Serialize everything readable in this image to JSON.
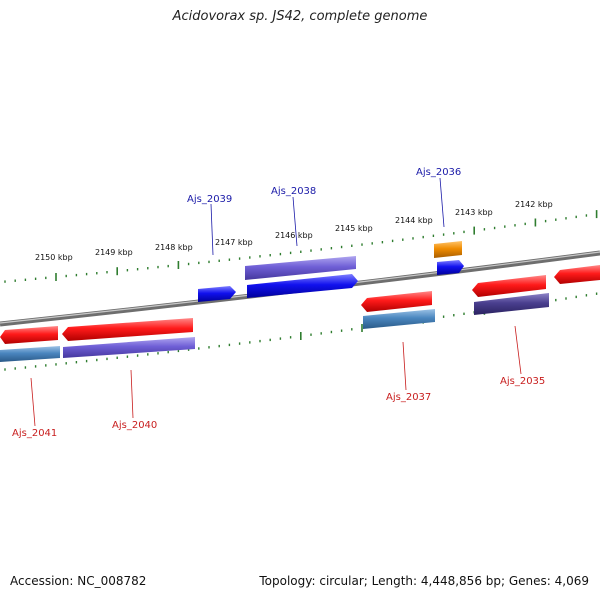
{
  "title": "Acidovorax sp. JS42, complete genome",
  "footer": {
    "accession": "Accession: NC_008782",
    "topology": "Topology: circular; Length: 4,448,856 bp; Genes: 4,069"
  },
  "colors": {
    "backbone": "#7d7d7d",
    "tick": "#2f7d2f",
    "label_forward": "#1a1aa8",
    "label_reverse": "#c81e1e",
    "gene_red": "#ff1a1a",
    "gene_blue": "#1111ee",
    "gene_purple": "#6f5fd6",
    "gene_steel": "#4a86bf",
    "gene_darkpurple": "#4a3f8f",
    "gene_orange": "#f08c00"
  },
  "kbp_ticks": [
    "2150 kbp",
    "2149 kbp",
    "2148 kbp",
    "2147 kbp",
    "2146 kbp",
    "2145 kbp",
    "2144 kbp",
    "2143 kbp",
    "2142 kbp"
  ],
  "genes": [
    {
      "name": "Ajs_2041",
      "strand": "reverse"
    },
    {
      "name": "Ajs_2040",
      "strand": "reverse"
    },
    {
      "name": "Ajs_2039",
      "strand": "forward"
    },
    {
      "name": "Ajs_2038",
      "strand": "forward"
    },
    {
      "name": "Ajs_2037",
      "strand": "reverse"
    },
    {
      "name": "Ajs_2036",
      "strand": "forward"
    },
    {
      "name": "Ajs_2035",
      "strand": "reverse"
    }
  ]
}
